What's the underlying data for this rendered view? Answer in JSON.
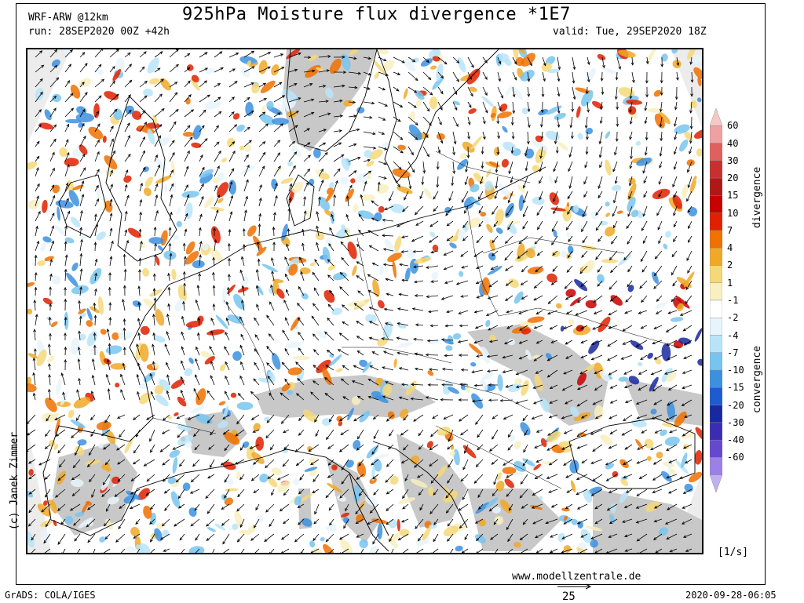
{
  "header": {
    "title": "925hPa Moisture flux divergence *1E7",
    "model": "WRF-ARW @12km",
    "run": "run: 28SEP2020 00Z +42h",
    "valid": "valid: Tue, 29SEP2020 18Z"
  },
  "colorbar": {
    "levels": [
      "60",
      "40",
      "30",
      "20",
      "15",
      "10",
      "7",
      "4",
      "2",
      "1",
      "-1",
      "-2",
      "-4",
      "-7",
      "-10",
      "-15",
      "-20",
      "-30",
      "-40",
      "-60"
    ],
    "colors": [
      "#f7c8c8",
      "#f0a0a0",
      "#e06060",
      "#c83030",
      "#b01818",
      "#c80000",
      "#e02000",
      "#f07000",
      "#f0a828",
      "#f5d878",
      "#f8f0c0",
      "#ffffff",
      "#e8f4fc",
      "#b8e4f8",
      "#78c4f0",
      "#3c90e0",
      "#1c5cd0",
      "#1828a0",
      "#3c2cb4",
      "#6448d0",
      "#9c80e8",
      "#c0b0f0"
    ],
    "divergence_label": "divergence",
    "convergence_label": "convergence",
    "unit": "[1/s]"
  },
  "footer": {
    "copyright": "(c) Janek Zimmer",
    "website": "www.modellzentrale.de",
    "grads": "GrADS: COLA/IGES",
    "timestamp": "2020-09-28-06:05",
    "reference_vector": "25"
  },
  "map_colors": {
    "land_masked": "#c8c8c8",
    "outside_domain": "#e8e8e8",
    "coast": "#000000"
  }
}
